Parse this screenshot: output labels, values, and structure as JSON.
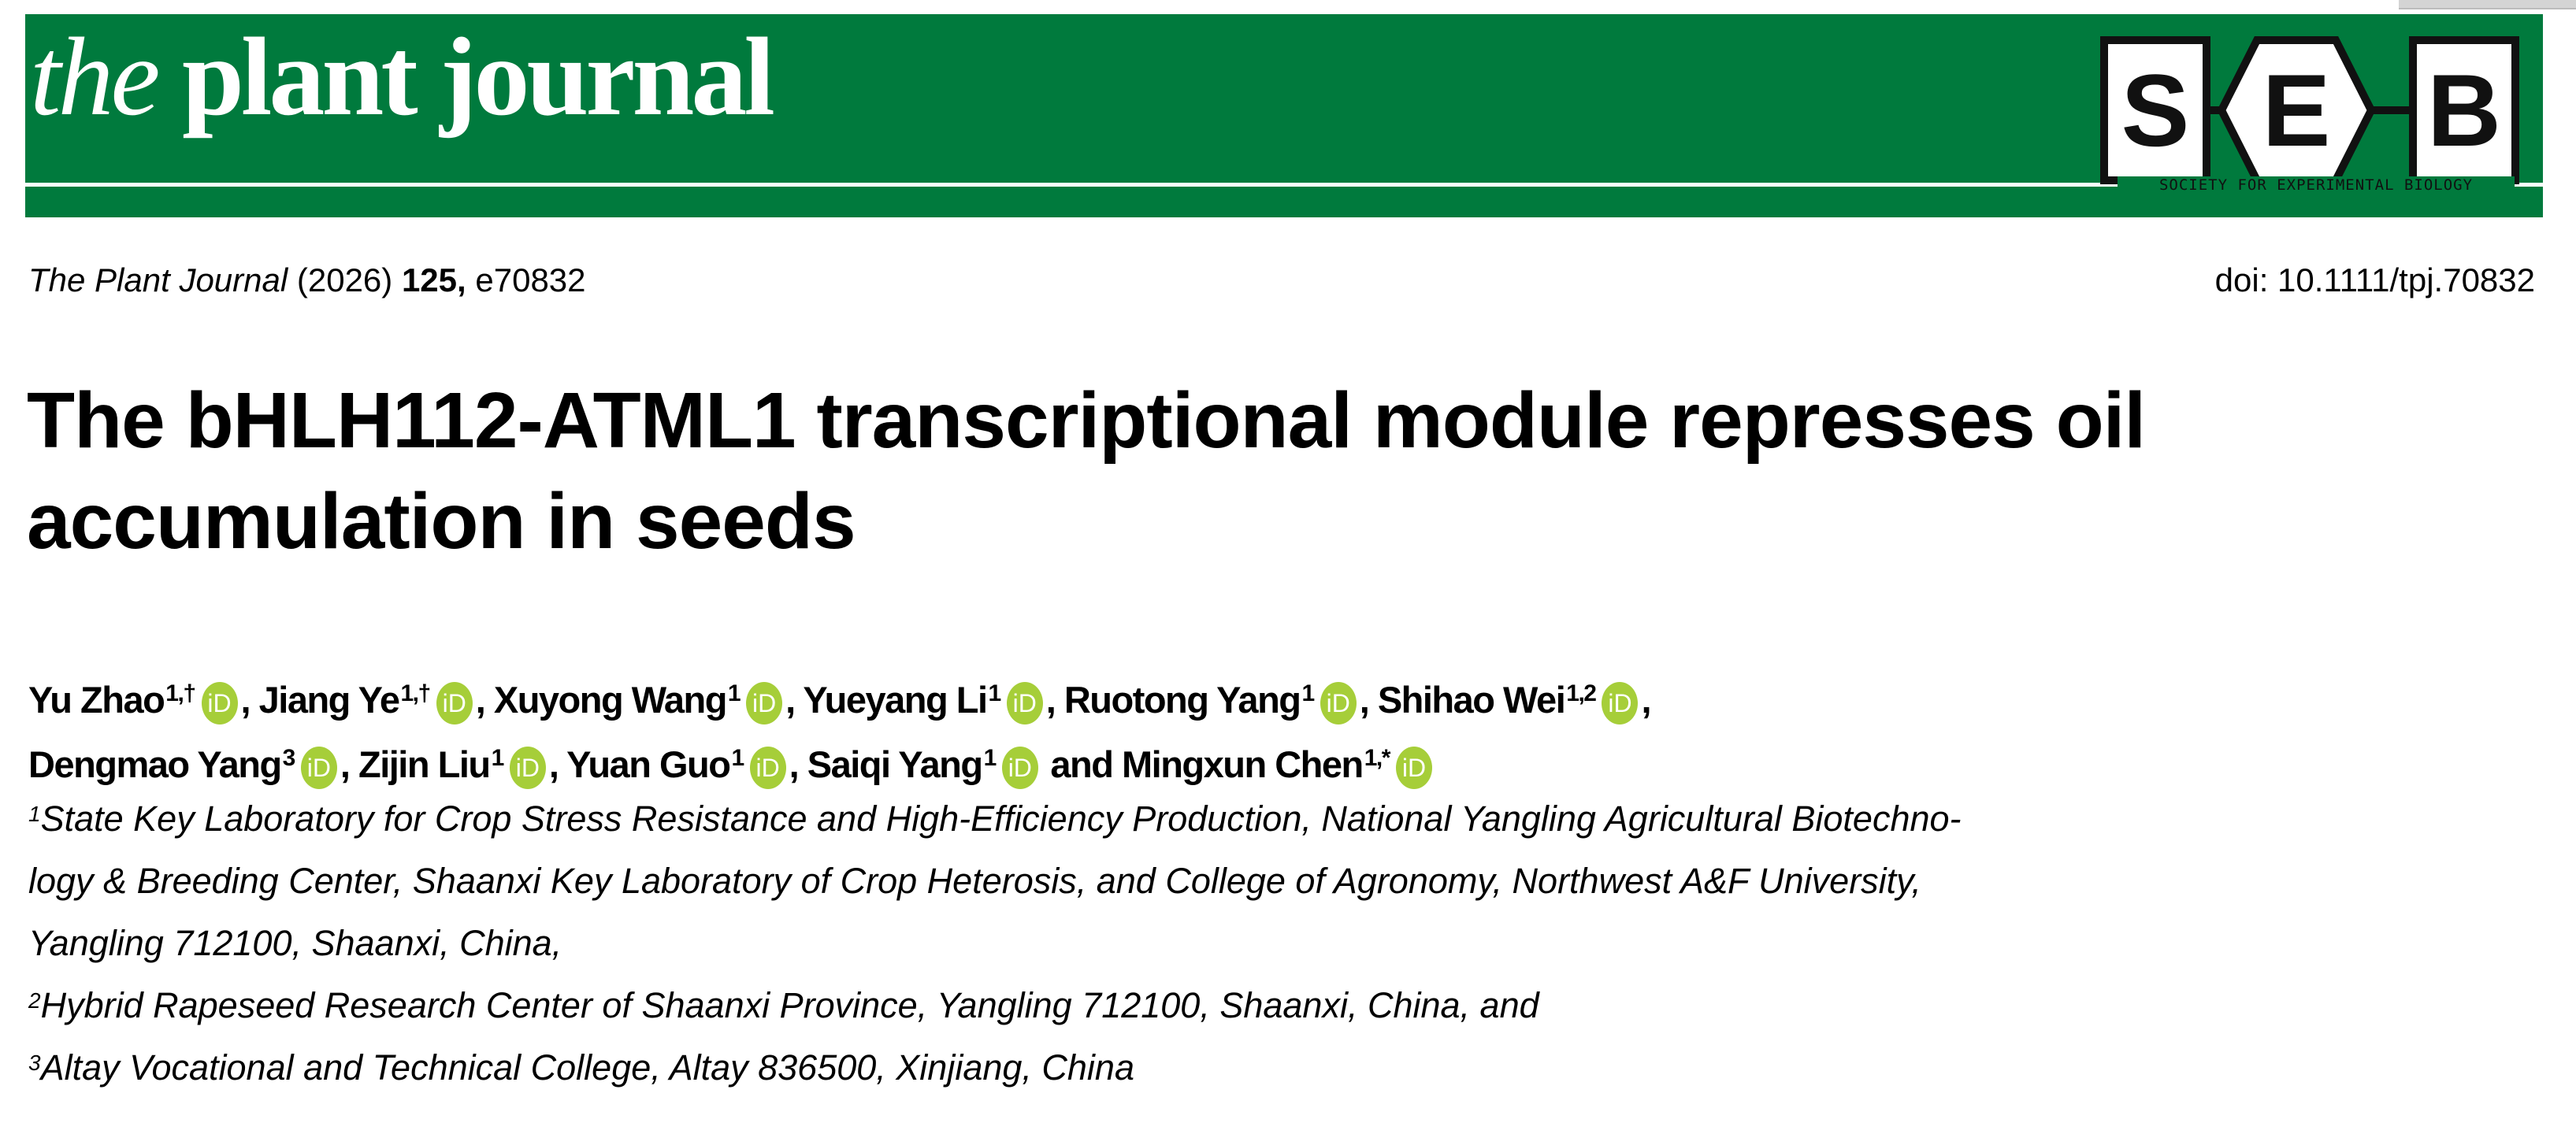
{
  "colors": {
    "banner": "#007a3d",
    "orcid": "#a6ce39"
  },
  "journal": {
    "logo_the": "the",
    "logo_rest": " plant journal",
    "society_letters": [
      "S",
      "E",
      "B"
    ],
    "society_name": "SOCIETY FOR EXPERIMENTAL BIOLOGY"
  },
  "citation": {
    "journal": "The Plant Journal",
    "year": " (2026) ",
    "volume": "125,",
    "article": " e70832",
    "doi": "doi: 10.1111/tpj.70832"
  },
  "title": "The bHLH112-ATML1 transcriptional module represses oil accumulation in seeds",
  "orcid_icon": "iD",
  "authors": [
    {
      "name": "Yu Zhao",
      "sup": "1,†",
      "after": ", "
    },
    {
      "name": "Jiang Ye",
      "sup": "1,†",
      "after": ", "
    },
    {
      "name": "Xuyong Wang",
      "sup": "1",
      "after": ", "
    },
    {
      "name": "Yueyang Li",
      "sup": "1",
      "after": ", "
    },
    {
      "name": "Ruotong Yang",
      "sup": "1",
      "after": ", "
    },
    {
      "name": "Shihao Wei",
      "sup": "1,2",
      "after": ","
    },
    {
      "name": "Dengmao Yang",
      "sup": "3",
      "after": ", "
    },
    {
      "name": "Zijin Liu",
      "sup": "1",
      "after": ", "
    },
    {
      "name": "Yuan Guo",
      "sup": "1",
      "after": ", "
    },
    {
      "name": "Saiqi Yang",
      "sup": "1",
      "after": " and "
    },
    {
      "name": "Mingxun Chen",
      "sup": "1,*",
      "after": ""
    }
  ],
  "affiliations": [
    {
      "num": "1",
      "lines": [
        "State Key Laboratory for Crop Stress Resistance and High-Efficiency Production, National Yangling Agricultural Biotechno-",
        "logy & Breeding Center, Shaanxi Key Laboratory of Crop Heterosis, and College of Agronomy, Northwest A&F University,",
        "Yangling 712100, Shaanxi, China,"
      ]
    },
    {
      "num": "2",
      "lines": [
        "Hybrid Rapeseed Research Center of Shaanxi Province, Yangling 712100, Shaanxi, China, and"
      ]
    },
    {
      "num": "3",
      "lines": [
        "Altay Vocational and Technical College, Altay 836500, Xinjiang, China"
      ]
    }
  ]
}
